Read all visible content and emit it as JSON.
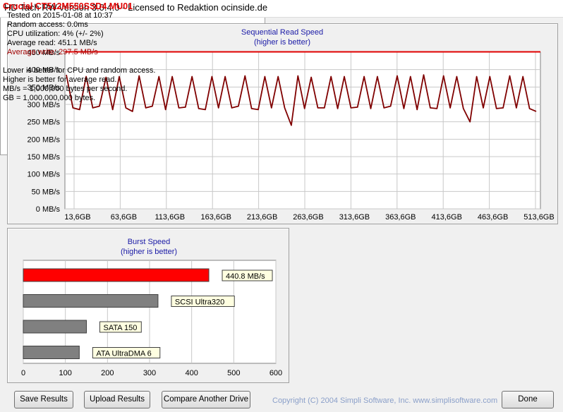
{
  "window": {
    "title": "HD Tach RW version 3.0.4.0 - Licensed to Redaktion ocinside.de"
  },
  "sequential": {
    "title": "Sequential Read Speed",
    "subtitle": "(higher is better)",
    "y_ticks": [
      "450 MB/s",
      "400 MB/s",
      "350 MB/s",
      "300 MB/s",
      "250 MB/s",
      "200 MB/s",
      "150 MB/s",
      "100 MB/s",
      "50 MB/s",
      "0 MB/s"
    ],
    "x_ticks": [
      "13,6GB",
      "63,6GB",
      "113,6GB",
      "163,6GB",
      "213,6GB",
      "263,6GB",
      "313,6GB",
      "363,6GB",
      "413,6GB",
      "463,6GB",
      "513,6GB"
    ]
  },
  "burst": {
    "title": "Burst Speed",
    "subtitle": "(higher is better)",
    "x_ticks": [
      "0",
      "100",
      "200",
      "300",
      "400",
      "500",
      "600"
    ]
  },
  "info": {
    "drive": "Crucial CT512M550SSD4 MU01",
    "tested": "Tested on 2015-01-08 at 10:37",
    "random_access": "Random access: 0.0ms",
    "cpu": "CPU utilization: 4% (+/- 2%)",
    "avg_read": "Average read: 451.1 MB/s",
    "avg_write": "Average write: 297.5 MB/s",
    "note1": "Lower is better for CPU and random access.",
    "note2": "Higher is better for average read.",
    "note3": "MB/s = 1,000,000 bytes per second.",
    "note4": "GB = 1,000,000,000 bytes."
  },
  "buttons": {
    "save": "Save Results",
    "upload": "Upload Results",
    "compare": "Compare Another Drive",
    "done": "Done"
  },
  "copyright": "Copyright (C) 2004 Simpli Software, Inc. www.simplisoftware.com",
  "colors": {
    "read_line": "#e00000",
    "write_line": "#800000",
    "drive_bar": "#ff0000",
    "ref_bar": "#808080",
    "drive_name": "#e00000",
    "avg_write_text": "#a00000"
  },
  "chart_data": [
    {
      "type": "line",
      "title": "Sequential Read Speed",
      "subtitle": "(higher is better)",
      "xlabel": "",
      "ylabel": "",
      "ylim": [
        0,
        450
      ],
      "x_ticks": [
        "13,6GB",
        "63,6GB",
        "113,6GB",
        "163,6GB",
        "213,6GB",
        "263,6GB",
        "313,6GB",
        "363,6GB",
        "413,6GB",
        "463,6GB",
        "513,6GB"
      ],
      "grid": true,
      "series": [
        {
          "values": [
            451,
            451,
            451,
            451,
            451,
            451,
            451,
            451,
            451,
            451,
            451
          ]
        },
        {
          "values": [
            385,
            290,
            285,
            380,
            290,
            295,
            378,
            285,
            380,
            290,
            280,
            382,
            290,
            295,
            380,
            285,
            380,
            290,
            292,
            380,
            288,
            285,
            380,
            290,
            380,
            290,
            295,
            382,
            288,
            285,
            380,
            290,
            380,
            290,
            240,
            382,
            288,
            378,
            290,
            290,
            380,
            288,
            380,
            290,
            292,
            380,
            288,
            380,
            290,
            295,
            382,
            288,
            380,
            285,
            385,
            290,
            288,
            382,
            290,
            380,
            288,
            250,
            380,
            290,
            380,
            288,
            290,
            382,
            290,
            380,
            288,
            280
          ]
        }
      ]
    },
    {
      "type": "bar",
      "title": "Burst Speed",
      "subtitle": "(higher is better)",
      "orientation": "horizontal",
      "categories": [
        "440.8 MB/s",
        "SCSI Ultra320",
        "SATA 150",
        "ATA UltraDMA 6"
      ],
      "values": [
        440.8,
        320,
        150,
        133
      ],
      "xlim": [
        0,
        600
      ]
    }
  ]
}
